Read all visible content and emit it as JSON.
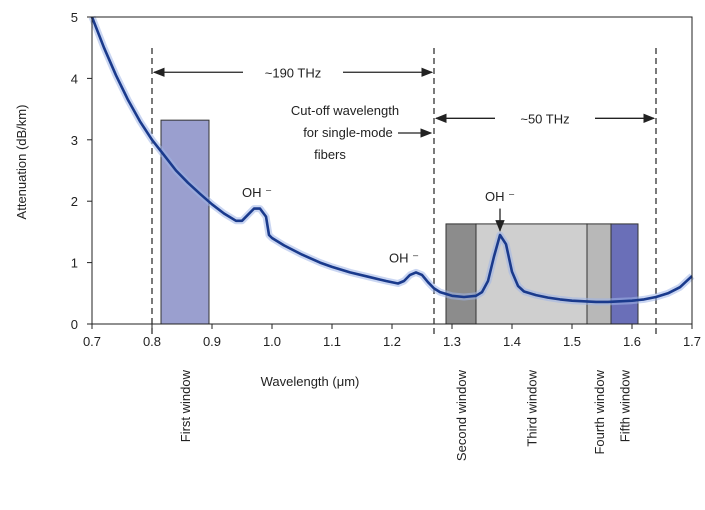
{
  "chart_data": {
    "type": "line",
    "xlabel": "Wavelength (μm)",
    "ylabel": "Attenuation (dB/km)",
    "xlim": [
      0.7,
      1.7
    ],
    "ylim": [
      0,
      5
    ],
    "x_ticks": [
      "0.7",
      "0.8",
      "0.9",
      "1.0",
      "1.1",
      "1.2",
      "1.3",
      "1.4",
      "1.5",
      "1.6",
      "1.7"
    ],
    "y_ticks": [
      "0",
      "1",
      "2",
      "3",
      "4",
      "5"
    ],
    "grid": false,
    "colors": {
      "curve": "#1a3a8c",
      "curve_glow": "#9fb4e8",
      "first_window": "#9a9fcf",
      "second_window": "#8c8c8c",
      "third_window": "#cfcfcf",
      "fourth_window": "#b8b8b8",
      "fifth_window": "#6a6fb8"
    },
    "series": [
      {
        "x": [
          0.7,
          0.72,
          0.74,
          0.76,
          0.78,
          0.8,
          0.82,
          0.84,
          0.86,
          0.88,
          0.9,
          0.92,
          0.94,
          0.95,
          0.96,
          0.97,
          0.98,
          0.99,
          0.995,
          1.0,
          1.02,
          1.05,
          1.08,
          1.1,
          1.13,
          1.16,
          1.19,
          1.21,
          1.22,
          1.23,
          1.24,
          1.25,
          1.26,
          1.27,
          1.28,
          1.3,
          1.32,
          1.34,
          1.35,
          1.36,
          1.37,
          1.38,
          1.39,
          1.4,
          1.41,
          1.42,
          1.44,
          1.46,
          1.48,
          1.5,
          1.52,
          1.54,
          1.56,
          1.58,
          1.6,
          1.62,
          1.64,
          1.66,
          1.68,
          1.7
        ],
        "y": [
          5.0,
          4.5,
          4.05,
          3.65,
          3.3,
          3.0,
          2.75,
          2.5,
          2.3,
          2.12,
          1.95,
          1.8,
          1.68,
          1.68,
          1.78,
          1.88,
          1.88,
          1.75,
          1.45,
          1.4,
          1.28,
          1.13,
          1.0,
          0.93,
          0.84,
          0.77,
          0.7,
          0.66,
          0.7,
          0.8,
          0.84,
          0.8,
          0.68,
          0.58,
          0.52,
          0.46,
          0.44,
          0.46,
          0.52,
          0.7,
          1.1,
          1.45,
          1.3,
          0.85,
          0.62,
          0.53,
          0.47,
          0.43,
          0.4,
          0.38,
          0.37,
          0.36,
          0.36,
          0.37,
          0.38,
          0.4,
          0.44,
          0.5,
          0.6,
          0.78
        ]
      }
    ],
    "windows": [
      {
        "label": "First window",
        "x_start": 0.815,
        "x_end": 0.895,
        "height": 3.32,
        "color_key": "first_window"
      },
      {
        "label": "Second window",
        "x_start": 1.29,
        "x_end": 1.34,
        "height": 1.63,
        "color_key": "second_window"
      },
      {
        "label": "Third window",
        "x_start": 1.34,
        "x_end": 1.525,
        "height": 1.63,
        "color_key": "third_window"
      },
      {
        "label": "Fourth window",
        "x_start": 1.525,
        "x_end": 1.565,
        "height": 1.63,
        "color_key": "fourth_window"
      },
      {
        "label": "Fifth window",
        "x_start": 1.565,
        "x_end": 1.61,
        "height": 1.63,
        "color_key": "fifth_window"
      }
    ],
    "dashed_lines": [
      0.8,
      1.27,
      1.64
    ],
    "annotations": {
      "band_190": {
        "text": "~190 THz",
        "x_from": 0.8,
        "x_to": 1.27,
        "y": 4.1
      },
      "band_50": {
        "text": "~50 THz",
        "x_from": 1.27,
        "x_to": 1.64,
        "y": 3.35
      },
      "cutoff_lines": [
        "Cut-off wavelength",
        "for single-mode",
        "fibers"
      ],
      "oh_labels": [
        {
          "text": "OH ⁻",
          "x": 0.975,
          "y": 2.07
        },
        {
          "text": "OH ⁻",
          "x": 1.22,
          "y": 1.0
        },
        {
          "text": "OH ⁻",
          "x": 1.38,
          "y": 2.0
        }
      ]
    }
  }
}
